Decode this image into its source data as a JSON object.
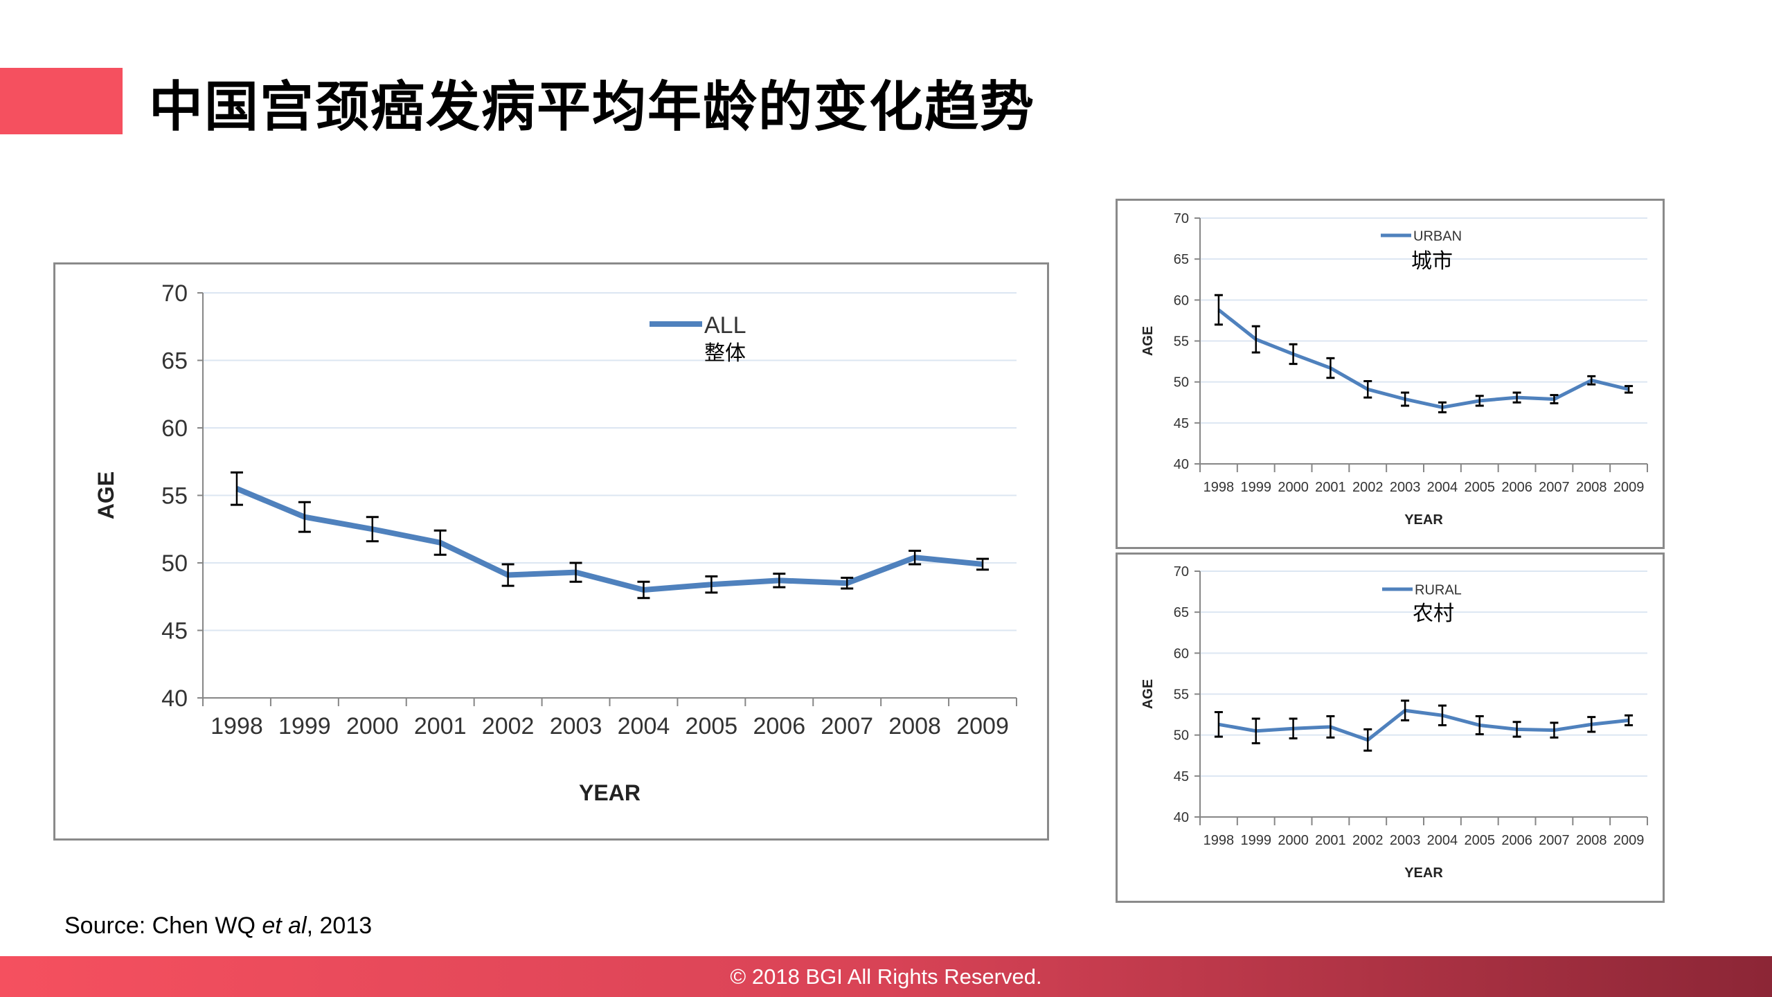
{
  "title": "中国宫颈癌发病平均年龄的变化趋势",
  "source": {
    "prefix": "Source: Chen WQ ",
    "italic": "et al",
    "suffix": ", 2013"
  },
  "footer": "© 2018 BGI All Rights Reserved.",
  "colors": {
    "accent": "#f5505f",
    "line": "#4f81bd",
    "errorbar": "#000000",
    "grid": "#dce6f2"
  },
  "chart_data": [
    {
      "id": "all",
      "type": "line",
      "legend": [
        "ALL",
        "整体"
      ],
      "legend_placement": "top-center",
      "xlabel": "YEAR",
      "ylabel": "AGE",
      "ylim": [
        40,
        70
      ],
      "yticks": [
        40,
        45,
        50,
        55,
        60,
        65,
        70
      ],
      "grid": true,
      "categories": [
        "1998",
        "1999",
        "2000",
        "2001",
        "2002",
        "2003",
        "2004",
        "2005",
        "2006",
        "2007",
        "2008",
        "2009"
      ],
      "values": [
        55.5,
        53.4,
        52.5,
        51.5,
        49.1,
        49.3,
        48.0,
        48.4,
        48.7,
        48.5,
        50.4,
        49.9
      ],
      "errors": [
        1.2,
        1.1,
        0.9,
        0.9,
        0.8,
        0.7,
        0.6,
        0.6,
        0.5,
        0.4,
        0.5,
        0.4
      ]
    },
    {
      "id": "urban",
      "type": "line",
      "legend": [
        "URBAN",
        "城市"
      ],
      "legend_placement": "top-center",
      "xlabel": "YEAR",
      "ylabel": "AGE",
      "ylim": [
        40,
        70
      ],
      "yticks": [
        40,
        45,
        50,
        55,
        60,
        65,
        70
      ],
      "grid": true,
      "categories": [
        "1998",
        "1999",
        "2000",
        "2001",
        "2002",
        "2003",
        "2004",
        "2005",
        "2006",
        "2007",
        "2008",
        "2009"
      ],
      "values": [
        58.8,
        55.2,
        53.4,
        51.7,
        49.1,
        47.9,
        46.9,
        47.7,
        48.1,
        47.9,
        50.2,
        49.1
      ],
      "errors": [
        1.8,
        1.6,
        1.2,
        1.2,
        1.0,
        0.8,
        0.6,
        0.6,
        0.6,
        0.5,
        0.5,
        0.4
      ]
    },
    {
      "id": "rural",
      "type": "line",
      "legend": [
        "RURAL",
        "农村"
      ],
      "legend_placement": "top-center",
      "xlabel": "YEAR",
      "ylabel": "AGE",
      "ylim": [
        40,
        70
      ],
      "yticks": [
        40,
        45,
        50,
        55,
        60,
        65,
        70
      ],
      "grid": true,
      "categories": [
        "1998",
        "1999",
        "2000",
        "2001",
        "2002",
        "2003",
        "2004",
        "2005",
        "2006",
        "2007",
        "2008",
        "2009"
      ],
      "values": [
        51.3,
        50.5,
        50.8,
        51.0,
        49.4,
        53.0,
        52.4,
        51.2,
        50.7,
        50.6,
        51.3,
        51.8
      ],
      "errors": [
        1.5,
        1.5,
        1.2,
        1.3,
        1.3,
        1.2,
        1.2,
        1.1,
        0.9,
        0.9,
        0.9,
        0.6
      ]
    }
  ]
}
